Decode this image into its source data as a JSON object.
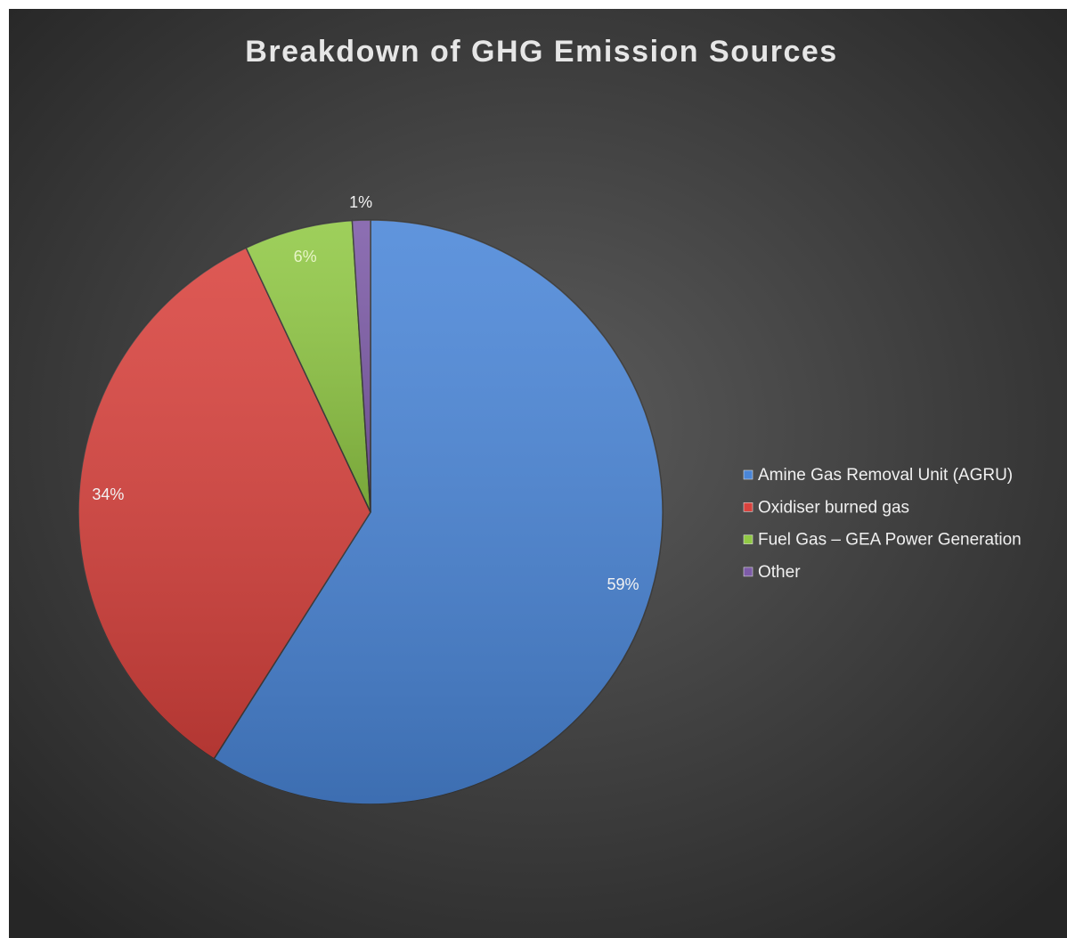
{
  "chart_data": {
    "type": "pie",
    "title": "Breakdown of GHG Emission Sources",
    "categories": [
      "Amine Gas Removal Unit (AGRU)",
      "Oxidiser burned gas",
      "Fuel Gas – GEA Power Generation",
      "Other"
    ],
    "values": [
      59,
      34,
      6,
      1
    ],
    "value_labels": [
      "59%",
      "34%",
      "6%",
      "1%"
    ],
    "colors": [
      "#4a86d8",
      "#d9423d",
      "#91c945",
      "#7d5ba8"
    ],
    "legend": "right"
  }
}
